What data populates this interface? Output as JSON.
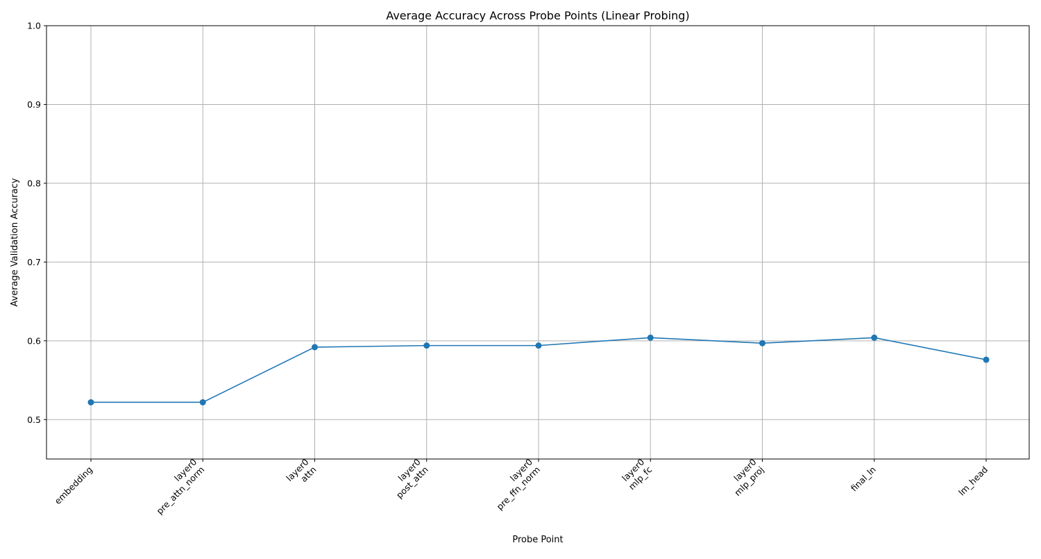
{
  "chart_data": {
    "type": "line",
    "title": "Average Accuracy Across Probe Points (Linear Probing)",
    "xlabel": "Probe Point",
    "ylabel": "Average Validation Accuracy",
    "categories": [
      [
        "embedding"
      ],
      [
        "layer0",
        "pre_attn_norm"
      ],
      [
        "layer0",
        "attn"
      ],
      [
        "layer0",
        "post_attn"
      ],
      [
        "layer0",
        "pre_ffn_norm"
      ],
      [
        "layer0",
        "mlp_fc"
      ],
      [
        "layer0",
        "mlp_proj"
      ],
      [
        "final_ln"
      ],
      [
        "lm_head"
      ]
    ],
    "series": [
      {
        "values": [
          0.522,
          0.522,
          0.592,
          0.594,
          0.594,
          0.604,
          0.597,
          0.604,
          0.576
        ],
        "color": "#1f77b4",
        "marker": "circle"
      }
    ],
    "ylim": [
      0.45,
      1.0
    ],
    "yticks": [
      "0.5",
      "0.6",
      "0.7",
      "0.8",
      "0.9",
      "1.0"
    ],
    "grid": true,
    "legend": false
  }
}
